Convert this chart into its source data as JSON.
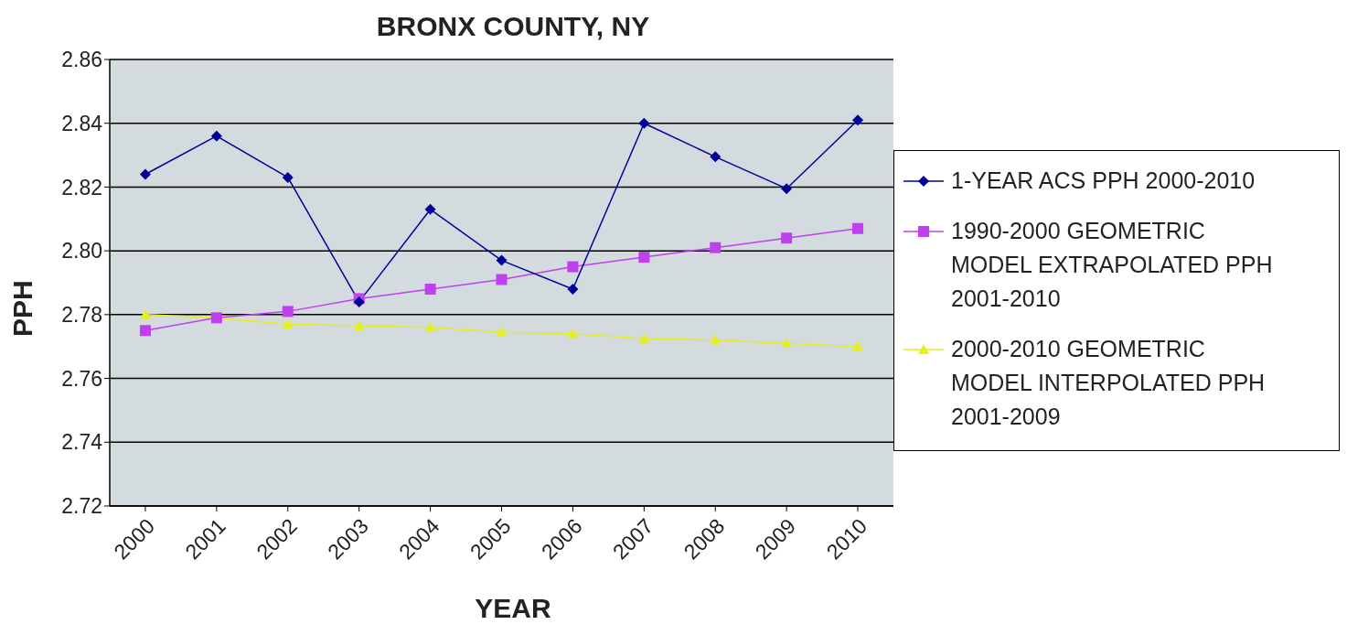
{
  "chart_data": {
    "type": "line",
    "title": "BRONX COUNTY, NY",
    "xlabel": "YEAR",
    "ylabel": "PPH",
    "categories": [
      "2000",
      "2001",
      "2002",
      "2003",
      "2004",
      "2005",
      "2006",
      "2007",
      "2008",
      "2009",
      "2010"
    ],
    "series": [
      {
        "name": "1-YEAR ACS PPH 2000-2010",
        "color": "#000099",
        "marker": "diamond",
        "values": [
          2.824,
          2.836,
          2.823,
          2.784,
          2.813,
          2.797,
          2.788,
          2.84,
          2.8295,
          2.8195,
          2.841
        ]
      },
      {
        "name": "1990-2000 GEOMETRIC MODEL EXTRAPOLATED PPH 2001-2010",
        "color": "#c040f0",
        "marker": "square",
        "values": [
          2.775,
          2.779,
          2.781,
          2.785,
          2.788,
          2.791,
          2.795,
          2.798,
          2.801,
          2.804,
          2.807
        ]
      },
      {
        "name": "2000-2010 GEOMETRIC MODEL INTERPOLATED PPH 2001-2009",
        "color": "#e4ee22",
        "marker": "triangle",
        "values": [
          2.78,
          2.779,
          2.777,
          2.7765,
          2.776,
          2.7745,
          2.774,
          2.7725,
          2.772,
          2.771,
          2.77
        ]
      }
    ],
    "ylim": [
      2.72,
      2.86
    ],
    "yticks": [
      {
        "value": 2.72,
        "label": "2.72"
      },
      {
        "value": 2.74,
        "label": "2.74"
      },
      {
        "value": 2.76,
        "label": "2.76"
      },
      {
        "value": 2.78,
        "label": "2.78"
      },
      {
        "value": 2.8,
        "label": "2.80"
      },
      {
        "value": 2.82,
        "label": "2.82"
      },
      {
        "value": 2.84,
        "label": "2.84"
      },
      {
        "value": 2.86,
        "label": "2.86"
      }
    ],
    "grid": "y",
    "legend": "right",
    "line_style": "solid"
  }
}
